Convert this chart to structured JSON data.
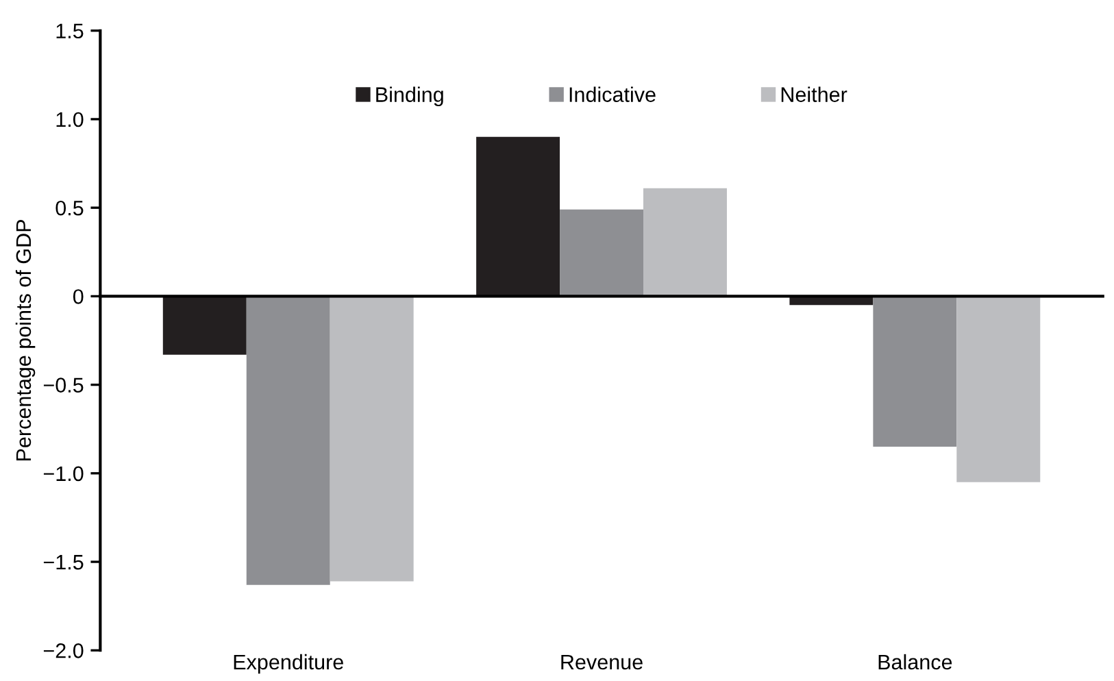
{
  "chart_data": {
    "type": "bar",
    "ylabel": "Percentage points of GDP",
    "categories": [
      "Expenditure",
      "Revenue",
      "Balance"
    ],
    "series": [
      {
        "name": "Binding",
        "color": "#231f20",
        "values": [
          -0.33,
          0.9,
          -0.05
        ]
      },
      {
        "name": "Indicative",
        "color": "#8e8f93",
        "values": [
          -1.63,
          0.49,
          -0.85
        ]
      },
      {
        "name": "Neither",
        "color": "#bcbdc0",
        "values": [
          -1.61,
          0.61,
          -1.05
        ]
      }
    ],
    "ylim": [
      -2.0,
      1.5
    ],
    "yticks": [
      {
        "value": -2.0,
        "label": "−2.0"
      },
      {
        "value": -1.5,
        "label": "−1.5"
      },
      {
        "value": -1.0,
        "label": "−1.0"
      },
      {
        "value": -0.5,
        "label": "−0.5"
      },
      0,
      {
        "value": 0.5,
        "label": "0.5"
      },
      {
        "value": 1.0,
        "label": "1.0"
      },
      {
        "value": 1.5,
        "label": "1.5"
      }
    ],
    "legend": "top"
  }
}
